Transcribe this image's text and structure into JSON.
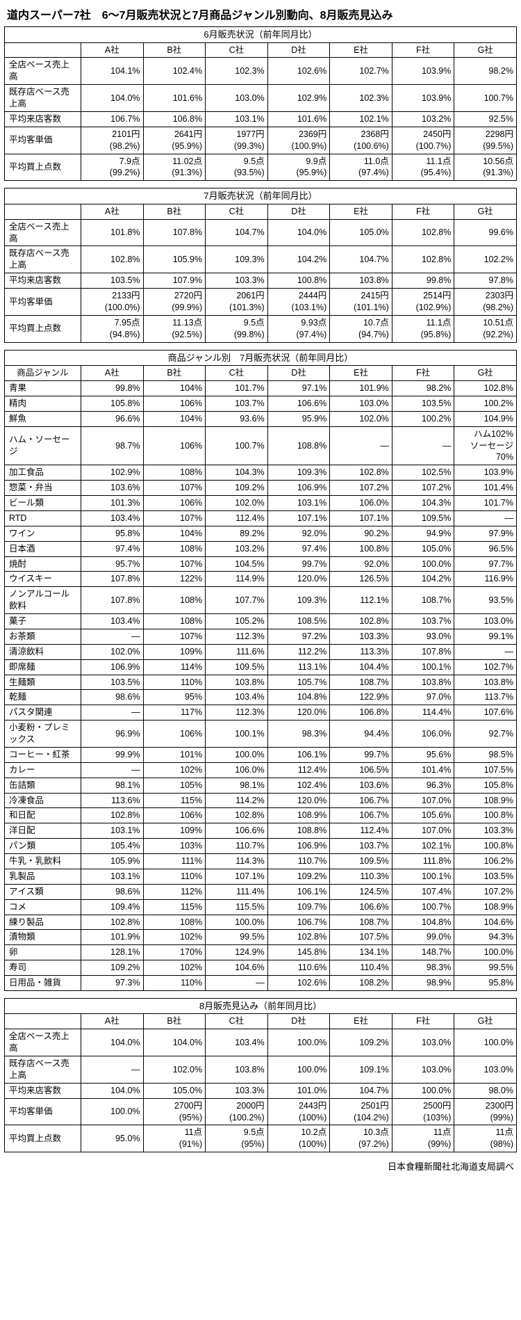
{
  "title": "道内スーパー7社　6〜7月販売状況と7月商品ジャンル別動向、8月販売見込み",
  "companies": [
    "A社",
    "B社",
    "C社",
    "D社",
    "E社",
    "F社",
    "G社"
  ],
  "table_june": {
    "caption": "6月販売状況（前年同月比）",
    "row_labels": [
      "全店ベース売上高",
      "既存店ベース売上高",
      "平均来店客数",
      "平均客単価",
      "平均買上点数"
    ],
    "rows_single": [
      [
        "104.1%",
        "102.4%",
        "102.3%",
        "102.6%",
        "102.7%",
        "103.9%",
        "98.2%"
      ],
      [
        "104.0%",
        "101.6%",
        "103.0%",
        "102.9%",
        "102.3%",
        "103.9%",
        "100.7%"
      ],
      [
        "106.7%",
        "106.8%",
        "103.1%",
        "101.6%",
        "102.1%",
        "103.2%",
        "92.5%"
      ]
    ],
    "rows_double": [
      [
        [
          "2101円",
          "(98.2%)"
        ],
        [
          "2641円",
          "(95.9%)"
        ],
        [
          "1977円",
          "(99.3%)"
        ],
        [
          "2369円",
          "(100.9%)"
        ],
        [
          "2368円",
          "(100.6%)"
        ],
        [
          "2450円",
          "(100.7%)"
        ],
        [
          "2298円",
          "(99.5%)"
        ]
      ],
      [
        [
          "7.9点",
          "(99.2%)"
        ],
        [
          "11.02点",
          "(91.3%)"
        ],
        [
          "9.5点",
          "(93.5%)"
        ],
        [
          "9.9点",
          "(95.9%)"
        ],
        [
          "11.0点",
          "(97.4%)"
        ],
        [
          "11.1点",
          "(95.4%)"
        ],
        [
          "10.56点",
          "(91.3%)"
        ]
      ]
    ]
  },
  "table_july": {
    "caption": "7月販売状況（前年同月比）",
    "row_labels": [
      "全店ベース売上高",
      "既存店ベース売上高",
      "平均来店客数",
      "平均客単価",
      "平均買上点数"
    ],
    "rows_single": [
      [
        "101.8%",
        "107.8%",
        "104.7%",
        "104.0%",
        "105.0%",
        "102.8%",
        "99.6%"
      ],
      [
        "102.8%",
        "105.9%",
        "109.3%",
        "104.2%",
        "104.7%",
        "102.8%",
        "102.2%"
      ],
      [
        "103.5%",
        "107.9%",
        "103.3%",
        "100.8%",
        "103.8%",
        "99.8%",
        "97.8%"
      ]
    ],
    "rows_double": [
      [
        [
          "2133円",
          "(100.0%)"
        ],
        [
          "2720円",
          "(99.9%)"
        ],
        [
          "2061円",
          "(101.3%)"
        ],
        [
          "2444円",
          "(103.1%)"
        ],
        [
          "2415円",
          "(101.1%)"
        ],
        [
          "2514円",
          "(102.9%)"
        ],
        [
          "2303円",
          "(98.2%)"
        ]
      ],
      [
        [
          "7.95点",
          "(94.8%)"
        ],
        [
          "11.13点",
          "(92.5%)"
        ],
        [
          "9.5点",
          "(99.8%)"
        ],
        [
          "9.93点",
          "(97.4%)"
        ],
        [
          "10.7点",
          "(94.7%)"
        ],
        [
          "11.1点",
          "(95.8%)"
        ],
        [
          "10.51点",
          "(92.2%)"
        ]
      ]
    ]
  },
  "table_genre": {
    "caption": "商品ジャンル別　7月販売状況（前年同月比）",
    "label_header": "商品ジャンル",
    "rows": [
      [
        "青果",
        "99.8%",
        "104%",
        "101.7%",
        "97.1%",
        "101.9%",
        "98.2%",
        "102.8%"
      ],
      [
        "精肉",
        "105.8%",
        "106%",
        "103.7%",
        "106.6%",
        "103.0%",
        "103.5%",
        "100.2%"
      ],
      [
        "鮮魚",
        "96.6%",
        "104%",
        "93.6%",
        "95.9%",
        "102.0%",
        "100.2%",
        "104.9%"
      ],
      [
        "ハム・ソーセージ",
        "98.7%",
        "106%",
        "100.7%",
        "108.8%",
        "—",
        "—",
        "ハム102%\nソーセージ70%"
      ],
      [
        "加工食品",
        "102.9%",
        "108%",
        "104.3%",
        "109.3%",
        "102.8%",
        "102.5%",
        "103.9%"
      ],
      [
        "惣菜・弁当",
        "103.6%",
        "107%",
        "109.2%",
        "106.9%",
        "107.2%",
        "107.2%",
        "101.4%"
      ],
      [
        "ビール類",
        "101.3%",
        "106%",
        "102.0%",
        "103.1%",
        "106.0%",
        "104.3%",
        "101.7%"
      ],
      [
        "RTD",
        "103.4%",
        "107%",
        "112.4%",
        "107.1%",
        "107.1%",
        "109.5%",
        "—"
      ],
      [
        "ワイン",
        "95.8%",
        "104%",
        "89.2%",
        "92.0%",
        "90.2%",
        "94.9%",
        "97.9%"
      ],
      [
        "日本酒",
        "97.4%",
        "108%",
        "103.2%",
        "97.4%",
        "100.8%",
        "105.0%",
        "96.5%"
      ],
      [
        "焼酎",
        "95.7%",
        "107%",
        "104.5%",
        "99.7%",
        "92.0%",
        "100.0%",
        "97.7%"
      ],
      [
        "ウイスキー",
        "107.8%",
        "122%",
        "114.9%",
        "120.0%",
        "126.5%",
        "104.2%",
        "116.9%"
      ],
      [
        "ノンアルコール飲料",
        "107.8%",
        "108%",
        "107.7%",
        "109.3%",
        "112.1%",
        "108.7%",
        "93.5%"
      ],
      [
        "菓子",
        "103.4%",
        "108%",
        "105.2%",
        "108.5%",
        "102.8%",
        "103.7%",
        "103.0%"
      ],
      [
        "お茶類",
        "—",
        "107%",
        "112.3%",
        "97.2%",
        "103.3%",
        "93.0%",
        "99.1%"
      ],
      [
        "清涼飲料",
        "102.0%",
        "109%",
        "111.6%",
        "112.2%",
        "113.3%",
        "107.8%",
        "—"
      ],
      [
        "即席麺",
        "106.9%",
        "114%",
        "109.5%",
        "113.1%",
        "104.4%",
        "100.1%",
        "102.7%"
      ],
      [
        "生麺類",
        "103.5%",
        "110%",
        "103.8%",
        "105.7%",
        "108.7%",
        "103.8%",
        "103.8%"
      ],
      [
        "乾麺",
        "98.6%",
        "95%",
        "103.4%",
        "104.8%",
        "122.9%",
        "97.0%",
        "113.7%"
      ],
      [
        "パスタ関連",
        "—",
        "117%",
        "112.3%",
        "120.0%",
        "106.8%",
        "114.4%",
        "107.6%"
      ],
      [
        "小麦粉・プレミックス",
        "96.9%",
        "106%",
        "100.1%",
        "98.3%",
        "94.4%",
        "106.0%",
        "92.7%"
      ],
      [
        "コーヒー・紅茶",
        "99.9%",
        "101%",
        "100.0%",
        "106.1%",
        "99.7%",
        "95.6%",
        "98.5%"
      ],
      [
        "カレー",
        "—",
        "102%",
        "106.0%",
        "112.4%",
        "106.5%",
        "101.4%",
        "107.5%"
      ],
      [
        "缶詰類",
        "98.1%",
        "105%",
        "98.1%",
        "102.4%",
        "103.6%",
        "96.3%",
        "105.8%"
      ],
      [
        "冷凍食品",
        "113.6%",
        "115%",
        "114.2%",
        "120.0%",
        "106.7%",
        "107.0%",
        "108.9%"
      ],
      [
        "和日配",
        "102.8%",
        "106%",
        "102.8%",
        "108.9%",
        "106.7%",
        "105.6%",
        "100.8%"
      ],
      [
        "洋日配",
        "103.1%",
        "109%",
        "106.6%",
        "108.8%",
        "112.4%",
        "107.0%",
        "103.3%"
      ],
      [
        "パン類",
        "105.4%",
        "103%",
        "110.7%",
        "106.9%",
        "103.7%",
        "102.1%",
        "100.8%"
      ],
      [
        "牛乳・乳飲料",
        "105.9%",
        "111%",
        "114.3%",
        "110.7%",
        "109.5%",
        "111.8%",
        "106.2%"
      ],
      [
        "乳製品",
        "103.1%",
        "110%",
        "107.1%",
        "109.2%",
        "110.3%",
        "100.1%",
        "103.5%"
      ],
      [
        "アイス類",
        "98.6%",
        "112%",
        "111.4%",
        "106.1%",
        "124.5%",
        "107.4%",
        "107.2%"
      ],
      [
        "コメ",
        "109.4%",
        "115%",
        "115.5%",
        "109.7%",
        "106.6%",
        "100.7%",
        "108.9%"
      ],
      [
        "練り製品",
        "102.8%",
        "108%",
        "100.0%",
        "106.7%",
        "108.7%",
        "104.8%",
        "104.6%"
      ],
      [
        "漬物類",
        "101.9%",
        "102%",
        "99.5%",
        "102.8%",
        "107.5%",
        "99.0%",
        "94.3%"
      ],
      [
        "卵",
        "128.1%",
        "170%",
        "124.9%",
        "145.8%",
        "134.1%",
        "148.7%",
        "100.0%"
      ],
      [
        "寿司",
        "109.2%",
        "102%",
        "104.6%",
        "110.6%",
        "110.4%",
        "98.3%",
        "99.5%"
      ],
      [
        "日用品・雑貨",
        "97.3%",
        "110%",
        "—",
        "102.6%",
        "108.2%",
        "98.9%",
        "95.8%"
      ]
    ]
  },
  "table_aug": {
    "caption": "8月販売見込み（前年同月比）",
    "row_labels": [
      "全店ベース売上高",
      "既存店ベース売上高",
      "平均来店客数",
      "平均客単価",
      "平均買上点数"
    ],
    "rows_single": [
      [
        "104.0%",
        "104.0%",
        "103.4%",
        "100.0%",
        "109.2%",
        "103.0%",
        "100.0%"
      ],
      [
        "—",
        "102.0%",
        "103.8%",
        "100.0%",
        "109.1%",
        "103.0%",
        "103.0%"
      ],
      [
        "104.0%",
        "105.0%",
        "103.3%",
        "101.0%",
        "104.7%",
        "100.0%",
        "98.0%"
      ]
    ],
    "rows_double": [
      [
        [
          "100.0%",
          ""
        ],
        [
          "2700円",
          "(95%)"
        ],
        [
          "2000円",
          "(100.2%)"
        ],
        [
          "2443円",
          "(100%)"
        ],
        [
          "2501円",
          "(104.2%)"
        ],
        [
          "2500円",
          "(103%)"
        ],
        [
          "2300円",
          "(99%)"
        ]
      ],
      [
        [
          "95.0%",
          ""
        ],
        [
          "11点",
          "(91%)"
        ],
        [
          "9.5点",
          "(95%)"
        ],
        [
          "10.2点",
          "(100%)"
        ],
        [
          "10.3点",
          "(97.2%)"
        ],
        [
          "11点",
          "(99%)"
        ],
        [
          "11点",
          "(98%)"
        ]
      ]
    ]
  },
  "footer": "日本食糧新聞社北海道支局調べ"
}
